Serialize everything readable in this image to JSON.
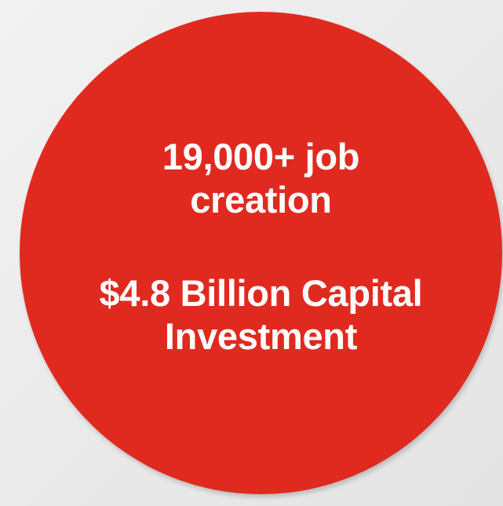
{
  "colors": {
    "background": "#eeeeee",
    "circle_fill": "#e02a1f",
    "text": "#ffffff"
  },
  "stats": {
    "jobs_line1": "19,000+ job",
    "jobs_line2": "creation",
    "investment_line1": "$4.8 Billion Capital",
    "investment_line2": "Investment"
  }
}
